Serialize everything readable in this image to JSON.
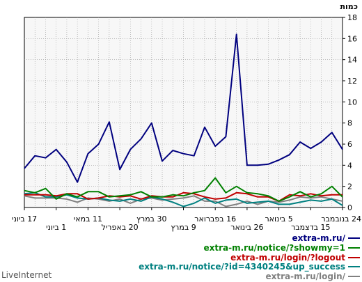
{
  "brand": "LiveInternet",
  "chart_data": {
    "type": "line",
    "ylabel": "כמות",
    "ylim": [
      0,
      18
    ],
    "yticks": [
      0,
      2,
      4,
      6,
      8,
      10,
      12,
      14,
      16,
      18
    ],
    "grid": true,
    "legend_position": "bottom-right",
    "x_tick_labels": [
      {
        "label": "24 בנובמבר",
        "row": 0,
        "index": 0
      },
      {
        "label": "15 בדצמבר",
        "row": 1,
        "index": 3
      },
      {
        "label": "5 בינואר",
        "row": 0,
        "index": 6
      },
      {
        "label": "26 בינואר",
        "row": 1,
        "index": 9
      },
      {
        "label": "16 בפברואר",
        "row": 0,
        "index": 12
      },
      {
        "label": "9 במרץ",
        "row": 1,
        "index": 15
      },
      {
        "label": "30 במרץ",
        "row": 0,
        "index": 18
      },
      {
        "label": "20 באפריל",
        "row": 1,
        "index": 21
      },
      {
        "label": "11 במאי",
        "row": 0,
        "index": 24
      },
      {
        "label": "1 ביוני",
        "row": 1,
        "index": 27
      },
      {
        "label": "17 ביוני",
        "row": 0,
        "index": 30
      }
    ],
    "point_count": 31,
    "series": [
      {
        "name": "extra-m.ru/",
        "color": "#00007f",
        "values": [
          5.5,
          7.1,
          6.2,
          5.6,
          6.2,
          5,
          4.5,
          4.1,
          4,
          4,
          16.4,
          6.7,
          5.8,
          7.6,
          4.9,
          5.1,
          5.4,
          4.4,
          8,
          6.5,
          5.5,
          3.6,
          8.1,
          6,
          5.1,
          2.4,
          4.3,
          5.5,
          4.7,
          4.9,
          3.7
        ]
      },
      {
        "name": "extra-m.ru/notice/?showmy=1",
        "color": "#008000",
        "values": [
          1,
          2,
          1.3,
          1,
          1.5,
          1,
          0.6,
          1.1,
          1.3,
          1.4,
          2,
          1.4,
          2.8,
          1.6,
          1.4,
          1.1,
          1.2,
          1,
          1,
          1.5,
          1.2,
          1.1,
          1,
          1.5,
          1.5,
          1,
          1.3,
          0.8,
          1.8,
          1.4,
          1.6
        ]
      },
      {
        "name": "extra-m.ru/login/?logout",
        "color": "#c00000",
        "values": [
          1.2,
          1.2,
          1.1,
          1.3,
          1.1,
          1.2,
          0.6,
          1,
          1,
          1.3,
          1.4,
          0.9,
          0.8,
          1,
          1.3,
          1.4,
          1,
          1,
          1.1,
          0.8,
          1.1,
          1,
          1.1,
          0.9,
          0.8,
          1.3,
          1.3,
          1.1,
          1.2,
          1.2,
          1.2
        ]
      },
      {
        "name": "extra-m.ru/notice/?id=4340245&up_success",
        "color": "#008080",
        "values": [
          0.2,
          0.8,
          0.6,
          0.7,
          0.5,
          0.3,
          0.3,
          0.6,
          0.5,
          0.4,
          0.8,
          0.7,
          0.4,
          0.9,
          0.4,
          0.1,
          0.5,
          0.8,
          1,
          0.6,
          0.8,
          0.6,
          0.7,
          0.9,
          0.8,
          0.9,
          1.2,
          1,
          1,
          1.4,
          1.3
        ]
      },
      {
        "name": "extra-m.ru/login/",
        "color": "#808080",
        "values": [
          0.6,
          0.8,
          1,
          0.9,
          1,
          0.7,
          0.5,
          0.6,
          0.3,
          0.6,
          0.3,
          0.1,
          0.6,
          0.6,
          1.1,
          0.9,
          0.8,
          0.7,
          0.9,
          0.8,
          0.4,
          0.8,
          0.6,
          0.8,
          0.9,
          0.5,
          0.8,
          0.9,
          0.9,
          0.9,
          1.1
        ]
      }
    ]
  }
}
